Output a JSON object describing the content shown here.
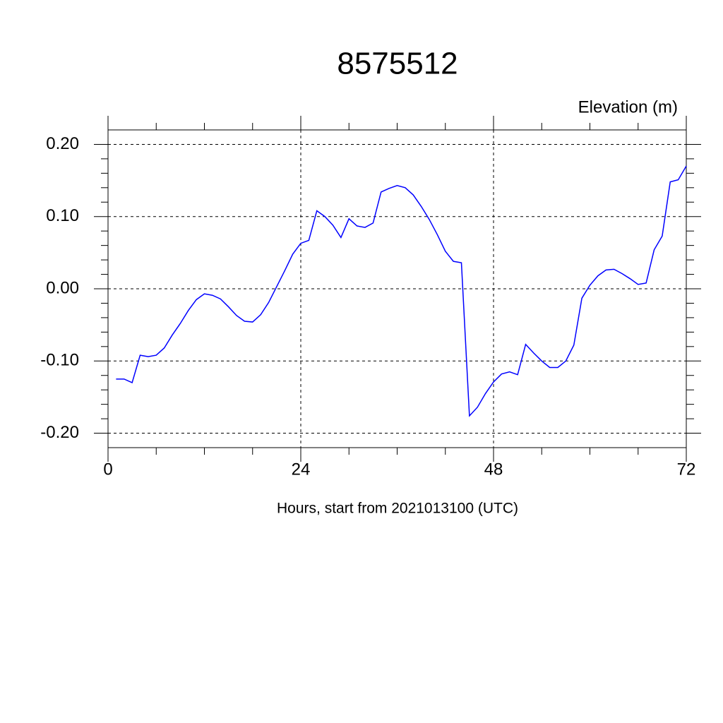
{
  "chart_data": {
    "type": "line",
    "title": "8575512",
    "ylabel": "Elevation (m)",
    "xlabel": "Hours, start from 2021013100 (UTC)",
    "xlim": [
      0,
      72
    ],
    "ylim": [
      -0.22,
      0.22
    ],
    "xticks": [
      0,
      24,
      48,
      72
    ],
    "yticks": [
      {
        "value": -0.2,
        "label": "-0.20"
      },
      {
        "value": -0.1,
        "label": "-0.10"
      },
      {
        "value": 0,
        "label": "0.00"
      },
      {
        "value": 0.1,
        "label": "0.10"
      },
      {
        "value": 0.2,
        "label": "0.20"
      }
    ],
    "grid": true,
    "x": [
      1,
      2,
      3,
      4,
      5,
      6,
      7,
      8,
      9,
      10,
      11,
      12,
      13,
      14,
      15,
      16,
      17,
      18,
      19,
      20,
      21,
      22,
      23,
      24,
      25,
      26,
      27,
      28,
      29,
      30,
      31,
      32,
      33,
      34,
      35,
      36,
      37,
      38,
      39,
      40,
      41,
      42,
      43,
      44,
      45,
      46,
      47,
      48,
      49,
      50,
      51,
      52,
      53,
      54,
      55,
      56,
      57,
      58,
      59,
      60,
      61,
      62,
      63,
      64,
      65,
      66,
      67,
      68,
      69,
      70,
      71,
      72
    ],
    "series": [
      {
        "color": "#0000ff",
        "values": [
          -0.125,
          -0.125,
          -0.13,
          -0.092,
          -0.094,
          -0.092,
          -0.082,
          -0.064,
          -0.048,
          -0.03,
          -0.015,
          -0.007,
          -0.009,
          -0.014,
          -0.025,
          -0.037,
          -0.045,
          -0.046,
          -0.036,
          -0.019,
          0.003,
          0.025,
          0.048,
          0.063,
          0.067,
          0.108,
          0.1,
          0.088,
          0.071,
          0.097,
          0.087,
          0.085,
          0.091,
          0.134,
          0.139,
          0.143,
          0.14,
          0.13,
          0.114,
          0.096,
          0.075,
          0.052,
          0.038,
          0.036,
          -0.176,
          -0.164,
          -0.145,
          -0.129,
          -0.118,
          -0.115,
          -0.119,
          -0.077,
          -0.089,
          -0.1,
          -0.109,
          -0.109,
          -0.1,
          -0.078,
          -0.013,
          0.005,
          0.018,
          0.026,
          0.027,
          0.021,
          0.014,
          0.006,
          0.008,
          0.054,
          0.073,
          0.148,
          0.151,
          0.17
        ]
      }
    ]
  }
}
